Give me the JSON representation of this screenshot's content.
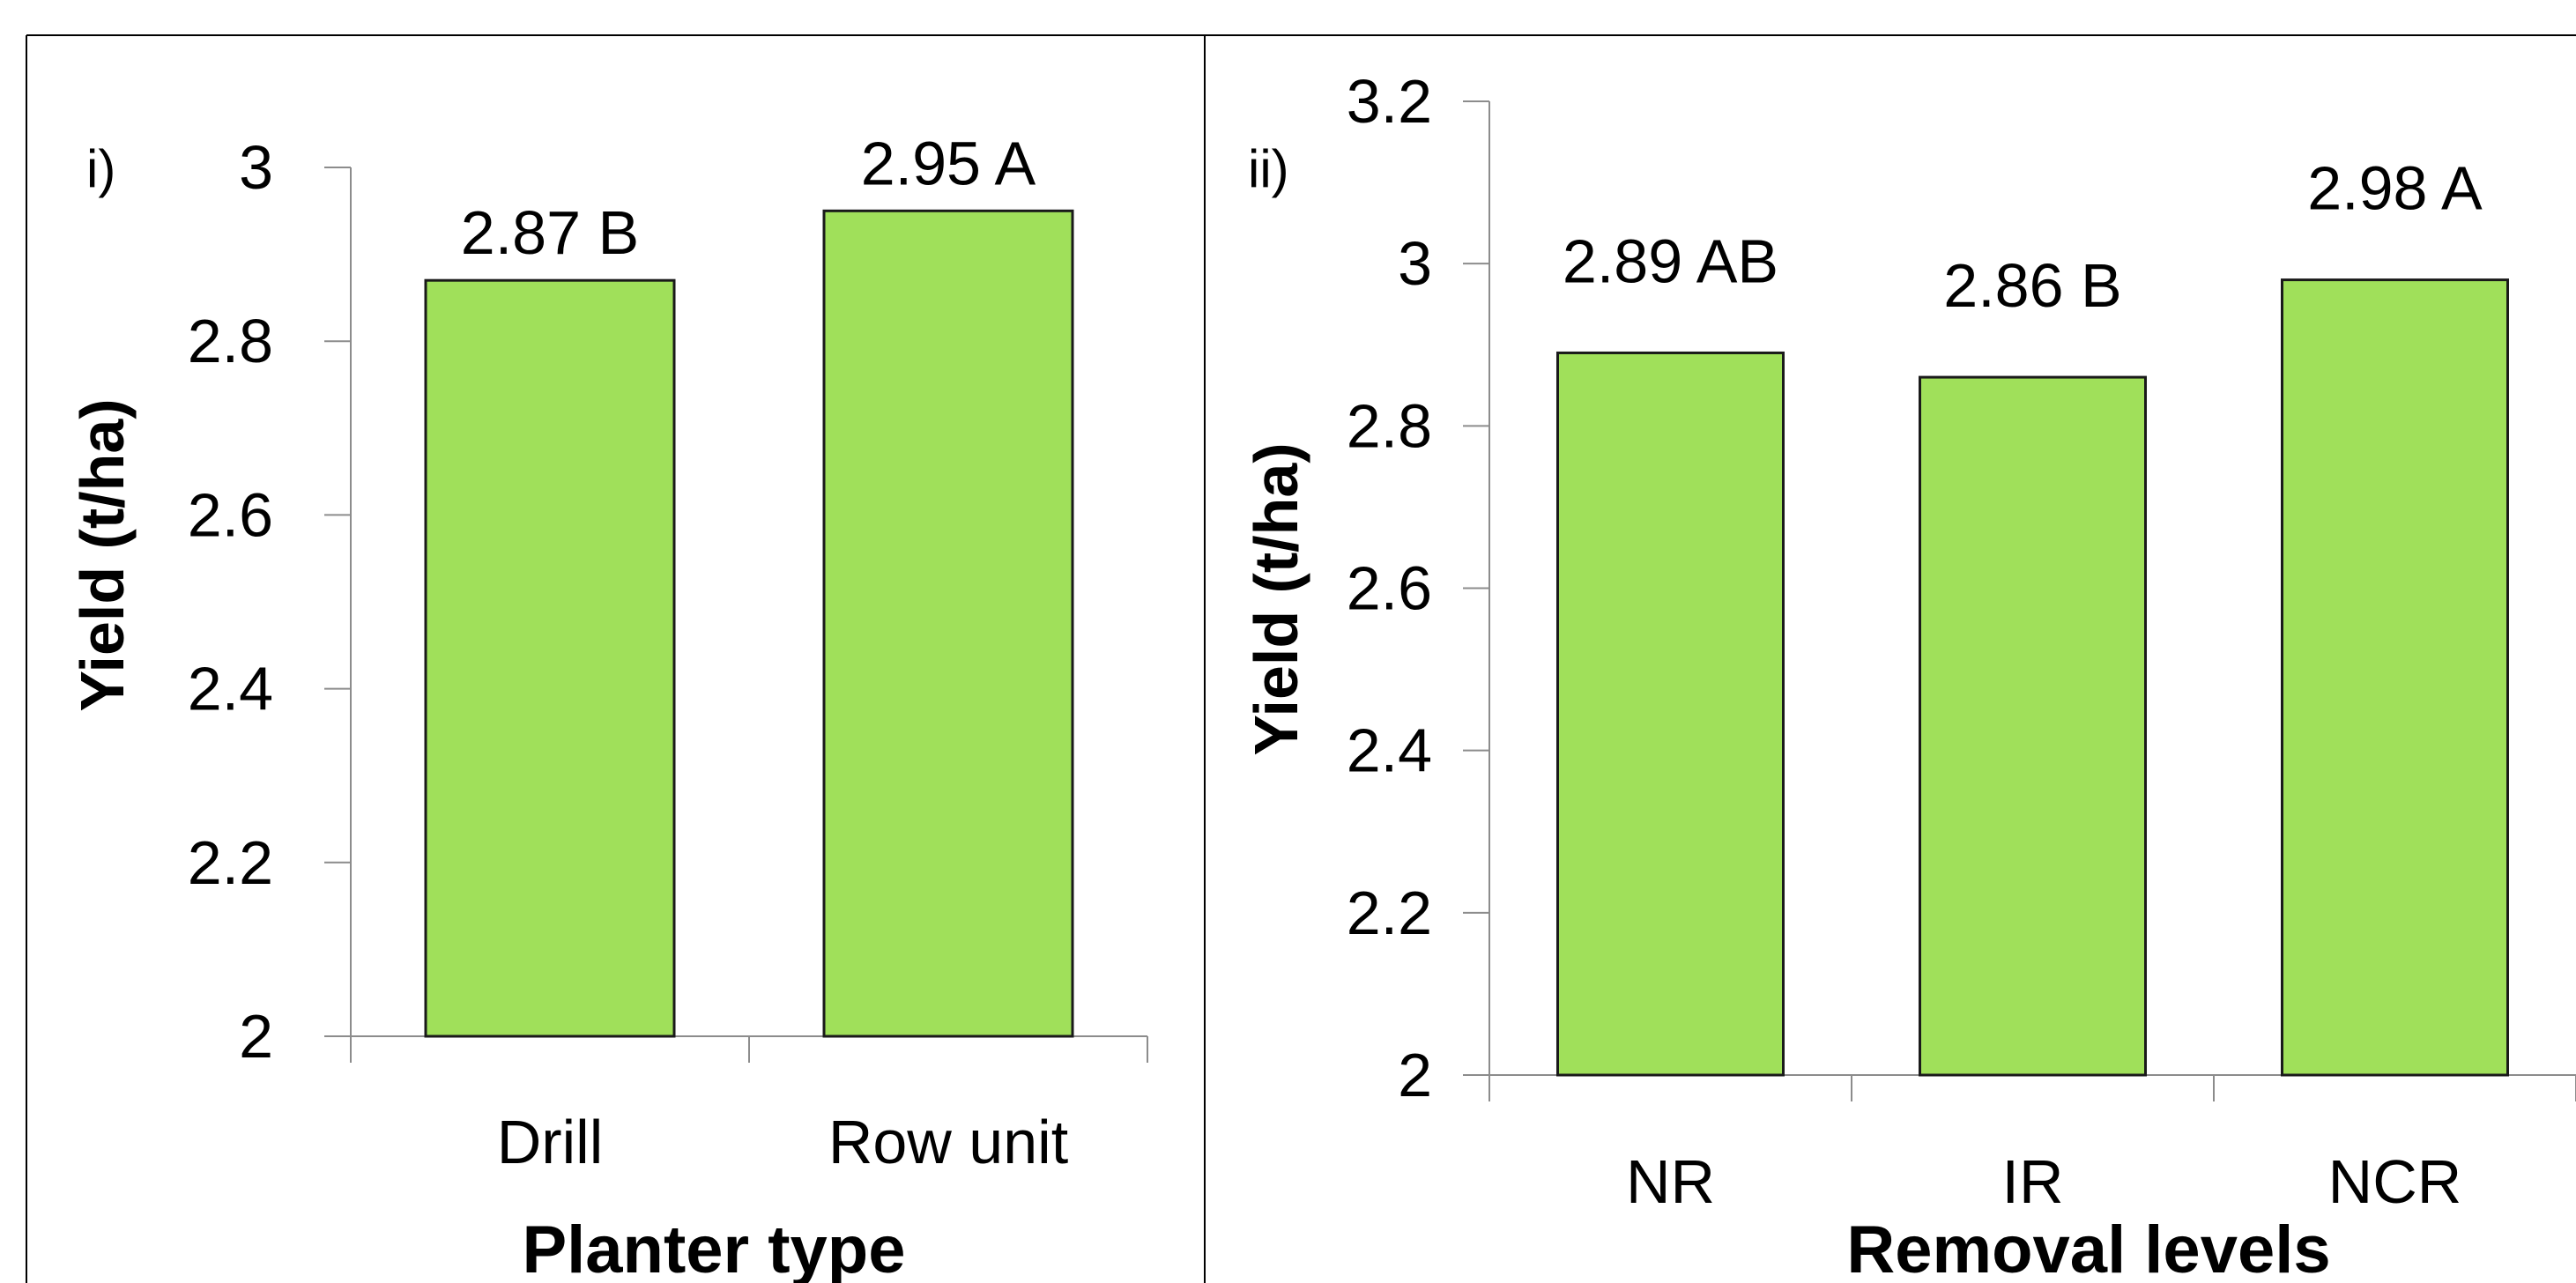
{
  "colors": {
    "bar_fill": "#A0E05A",
    "bar_stroke": "#1A1A1A",
    "axis": "#8C8C8C",
    "frame": "#000000",
    "text": "#000000"
  },
  "chart_data": [
    {
      "type": "bar",
      "panel_label": "i)",
      "categories": [
        "Drill",
        "Row unit"
      ],
      "values": [
        2.87,
        2.95
      ],
      "data_labels": [
        "2.87 B",
        "2.95 A"
      ],
      "xlabel": "Planter type",
      "ylabel": "Yield (t/ha)",
      "ylim": [
        2,
        3
      ],
      "yticks": [
        2,
        2.2,
        2.4,
        2.6,
        2.8,
        3
      ],
      "ytick_labels": [
        "2",
        "2.2",
        "2.4",
        "2.6",
        "2.8",
        "3"
      ],
      "grid": false,
      "legend": "none"
    },
    {
      "type": "bar",
      "panel_label": "ii)",
      "categories": [
        "NR",
        "IR",
        "NCR"
      ],
      "values": [
        2.89,
        2.86,
        2.98
      ],
      "data_labels": [
        "2.89 AB",
        "2.86 B",
        "2.98 A"
      ],
      "xlabel": "Removal levels",
      "ylabel": "Yield (t/ha)",
      "ylim": [
        2,
        3.2
      ],
      "yticks": [
        2,
        2.2,
        2.4,
        2.6,
        2.8,
        3,
        3.2
      ],
      "ytick_labels": [
        "2",
        "2.2",
        "2.4",
        "2.6",
        "2.8",
        "3",
        "3.2"
      ],
      "grid": false,
      "legend": "none"
    }
  ]
}
